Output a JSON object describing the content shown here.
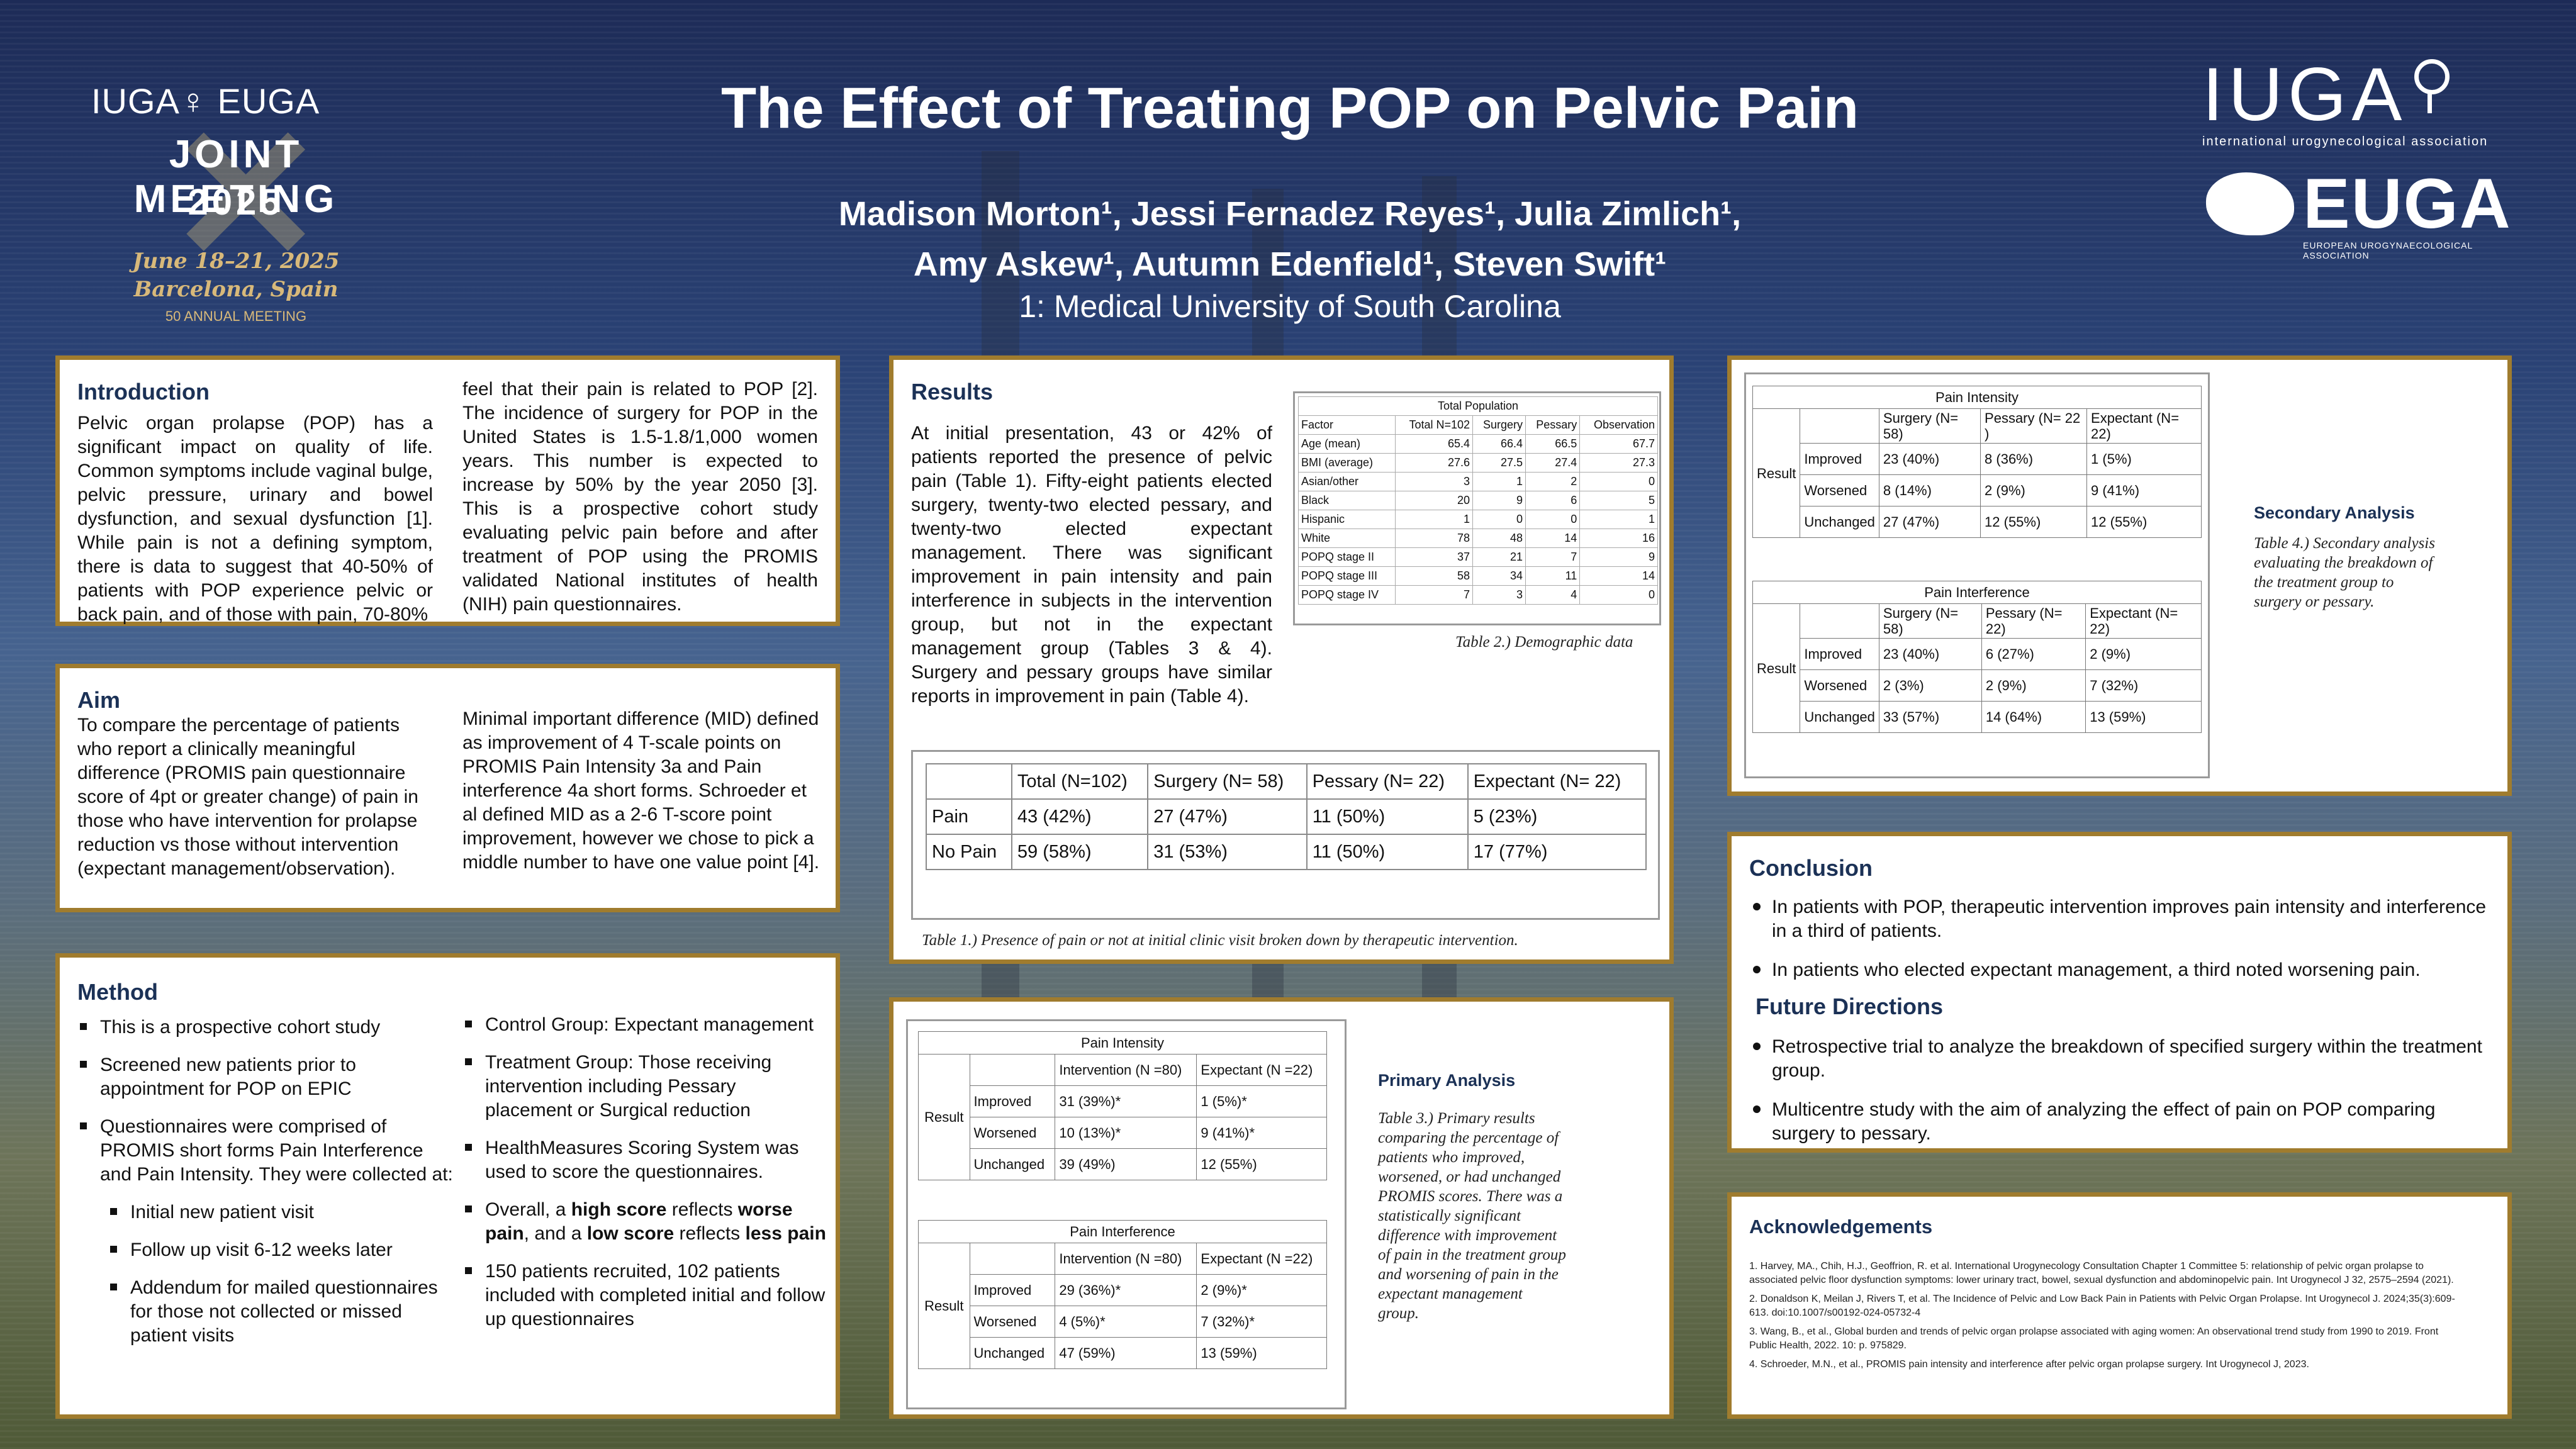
{
  "header": {
    "title": "The Effect of Treating POP on Pelvic Pain",
    "authors_line1": "Madison Morton¹, Jessi Fernadez Reyes¹, Julia Zimlich¹,",
    "authors_line2": "Amy Askew¹, Autumn Edenfield¹, Steven Swift¹",
    "affiliation": "1: Medical University of South Carolina",
    "left_logo": {
      "orgs": "IUGA♀ EUGA",
      "meeting": "JOINT MEETING",
      "year": "2025",
      "dates": "June 18–21, 2025",
      "city": "Barcelona, Spain",
      "anniversary": "50 ANNUAL MEETING"
    },
    "right_logo": {
      "iuga": "IUGA",
      "iuga_sub": "international urogynecological association",
      "euga": "EUGA",
      "euga_sub": "EUROPEAN UROGYNAECOLOGICAL ASSOCIATION"
    }
  },
  "introduction": {
    "heading": "Introduction",
    "col1": "Pelvic organ prolapse (POP) has a significant impact on quality of life. Common symptoms include vaginal bulge, pelvic pressure, urinary and bowel dysfunction, and sexual dysfunction [1]. While pain is not a defining symptom, there is data to suggest that 40-50% of patients with POP experience pelvic or back pain, and of those with pain, 70-80%",
    "col2": "feel that their pain is related to POP [2]. The incidence of surgery for POP in the United States is 1.5-1.8/1,000 women years. This number is expected to increase by 50% by the year 2050 [3]. This is a prospective cohort study evaluating pelvic pain before and after treatment of POP using the PROMIS validated National institutes of health (NIH) pain questionnaires."
  },
  "aim": {
    "heading": "Aim",
    "col1": "To compare the percentage of patients who report a clinically meaningful difference (PROMIS pain questionnaire score of 4pt or greater change) of pain in those who have intervention for prolapse reduction vs those without intervention (expectant management/observation).",
    "col2": "Minimal important difference (MID) defined as improvement of 4 T-scale points on PROMIS Pain Intensity 3a and Pain interference 4a short forms. Schroeder et al defined MID as a 2-6 T-score point improvement, however we chose to pick a middle number to have one value point [4]."
  },
  "method": {
    "heading": "Method",
    "col1": [
      "This is a prospective cohort study",
      "Screened new patients prior to appointment for POP on EPIC",
      "Questionnaires were comprised of PROMIS short forms Pain Interference and Pain Intensity. They were collected at:"
    ],
    "col1_sub": [
      "Initial new patient visit",
      "Follow up visit 6-12 weeks later",
      "Addendum for mailed questionnaires for those not collected or missed patient visits"
    ],
    "col2": [
      "Control Group: Expectant management",
      "Treatment Group: Those receiving intervention including Pessary placement or Surgical reduction",
      "HealthMeasures Scoring System was used to score the questionnaires.",
      "150 patients recruited, 102 patients included with completed initial and follow up questionnaires"
    ],
    "overall": {
      "a": "Overall, a ",
      "b": "high score",
      "c": " reflects ",
      "d": "worse pain",
      "e": ", and a ",
      "f": "low score",
      "g": " reflects ",
      "h": "less pain"
    }
  },
  "results": {
    "heading": "Results",
    "text": "At initial presentation, 43 or 42% of patients reported the presence of pelvic pain (Table 1). Fifty-eight patients elected surgery, twenty-two elected pessary, and twenty-two elected expectant management. There was significant improvement in pain intensity and pain interference in subjects in the intervention group, but not in the expectant management group (Tables 3 & 4). Surgery and pessary groups have similar reports in improvement in pain (Table 4).",
    "demo": {
      "title": "Total Population",
      "header": [
        "Factor",
        "Total N=102",
        "Surgery",
        "Pessary",
        "Observation"
      ],
      "rows": [
        [
          "Age (mean)",
          "65.4",
          "66.4",
          "66.5",
          "67.7"
        ],
        [
          "BMI (average)",
          "27.6",
          "27.5",
          "27.4",
          "27.3"
        ],
        [
          "Asian/other",
          "3",
          "1",
          "2",
          "0"
        ],
        [
          "Black",
          "20",
          "9",
          "6",
          "5"
        ],
        [
          "Hispanic",
          "1",
          "0",
          "0",
          "1"
        ],
        [
          "White",
          "78",
          "48",
          "14",
          "16"
        ],
        [
          "POPQ stage II",
          "37",
          "21",
          "7",
          "9"
        ],
        [
          "POPQ stage III",
          "58",
          "34",
          "11",
          "14"
        ],
        [
          "POPQ stage IV",
          "7",
          "3",
          "4",
          "0"
        ]
      ],
      "caption": "Table 2.) Demographic data"
    },
    "table1": {
      "header": [
        "",
        "Total (N=102)",
        "Surgery (N= 58)",
        "Pessary (N= 22)",
        "Expectant (N= 22)"
      ],
      "rows": [
        [
          "Pain",
          "43 (42%)",
          "27 (47%)",
          "11 (50%)",
          "5 (23%)"
        ],
        [
          "No Pain",
          "59 (58%)",
          "31 (53%)",
          "11 (50%)",
          "17 (77%)"
        ]
      ],
      "caption": "Table 1.) Presence of pain or not at initial clinic visit broken down by therapeutic intervention."
    }
  },
  "primary": {
    "heading": "Primary Analysis",
    "caption": "Table 3.) Primary results comparing the percentage of patients who improved, worsened, or had unchanged PROMIS scores. There was a statistically significant difference with improvement of pain in the treatment group and worsening of pain in the expectant management group.",
    "intensity": {
      "title": "Pain Intensity",
      "group": "Result",
      "cols": [
        "Intervention (N =80)",
        "Expectant (N =22)"
      ],
      "rows": [
        [
          "Improved",
          "31 (39%)*",
          "1 (5%)*"
        ],
        [
          "Worsened",
          "10 (13%)*",
          "9 (41%)*"
        ],
        [
          "Unchanged",
          "39 (49%)",
          "12 (55%)"
        ]
      ]
    },
    "interference": {
      "title": "Pain Interference",
      "group": "Result",
      "cols": [
        "Intervention (N =80)",
        "Expectant (N =22)"
      ],
      "rows": [
        [
          "Improved",
          "29 (36%)*",
          "2 (9%)*"
        ],
        [
          "Worsened",
          "4 (5%)*",
          "7 (32%)*"
        ],
        [
          "Unchanged",
          "47 (59%)",
          "13 (59%)"
        ]
      ]
    }
  },
  "secondary": {
    "heading": "Secondary Analysis",
    "caption": "Table 4.) Secondary analysis evaluating the breakdown of the treatment group to surgery or pessary.",
    "intensity": {
      "title": "Pain Intensity",
      "group": "Result",
      "cols": [
        "Surgery (N= 58)",
        "Pessary (N= 22 )",
        "Expectant (N= 22)"
      ],
      "rows": [
        [
          "Improved",
          "23 (40%)",
          "8 (36%)",
          "1 (5%)"
        ],
        [
          "Worsened",
          "8 (14%)",
          "2 (9%)",
          "9 (41%)"
        ],
        [
          "Unchanged",
          "27 (47%)",
          "12 (55%)",
          "12 (55%)"
        ]
      ]
    },
    "interference": {
      "title": "Pain Interference",
      "group": "Result",
      "cols": [
        "Surgery (N= 58)",
        "Pessary (N= 22)",
        "Expectant (N= 22)"
      ],
      "rows": [
        [
          "Improved",
          "23 (40%)",
          "6 (27%)",
          "2 (9%)"
        ],
        [
          "Worsened",
          "2 (3%)",
          "2 (9%)",
          "7 (32%)"
        ],
        [
          "Unchanged",
          "33 (57%)",
          "14 (64%)",
          "13 (59%)"
        ]
      ]
    }
  },
  "conclusion": {
    "heading": "Conclusion",
    "items": [
      "In patients with POP, therapeutic intervention improves pain intensity and interference in a third of patients.",
      "In patients who elected expectant management, a third noted worsening pain."
    ],
    "future_heading": "Future Directions",
    "future_items": [
      "Retrospective trial to analyze the breakdown of specified surgery within the treatment group.",
      "Multicentre study with the aim of analyzing the effect of pain on POP comparing surgery to pessary."
    ]
  },
  "acknowledgements": {
    "heading": "Acknowledgements",
    "refs": [
      "1. Harvey, MA., Chih, H.J., Geoffrion, R. et al. International Urogynecology Consultation Chapter 1 Committee 5: relationship of pelvic organ prolapse to associated pelvic floor dysfunction symptoms: lower urinary tract, bowel, sexual dysfunction and abdominopelvic pain. Int Urogynecol J 32, 2575–2594 (2021).",
      "2. Donaldson K, Meilan J, Rivers T, et al. The Incidence of Pelvic and Low Back Pain in Patients with Pelvic Organ Prolapse. Int Urogynecol J. 2024;35(3):609-613. doi:10.1007/s00192-024-05732-4",
      "3. Wang, B., et al., Global burden and trends of pelvic organ prolapse associated with aging women: An observational trend study from 1990 to 2019. Front Public Health, 2022. 10: p. 975829.",
      "4. Schroeder, M.N., et al., PROMIS pain intensity and interference after pelvic organ prolapse surgery. Int Urogynecol J, 2023."
    ]
  },
  "colors": {
    "panel_border": "#a07c2e",
    "heading": "#1b3156",
    "gold": "#d8b97a"
  }
}
